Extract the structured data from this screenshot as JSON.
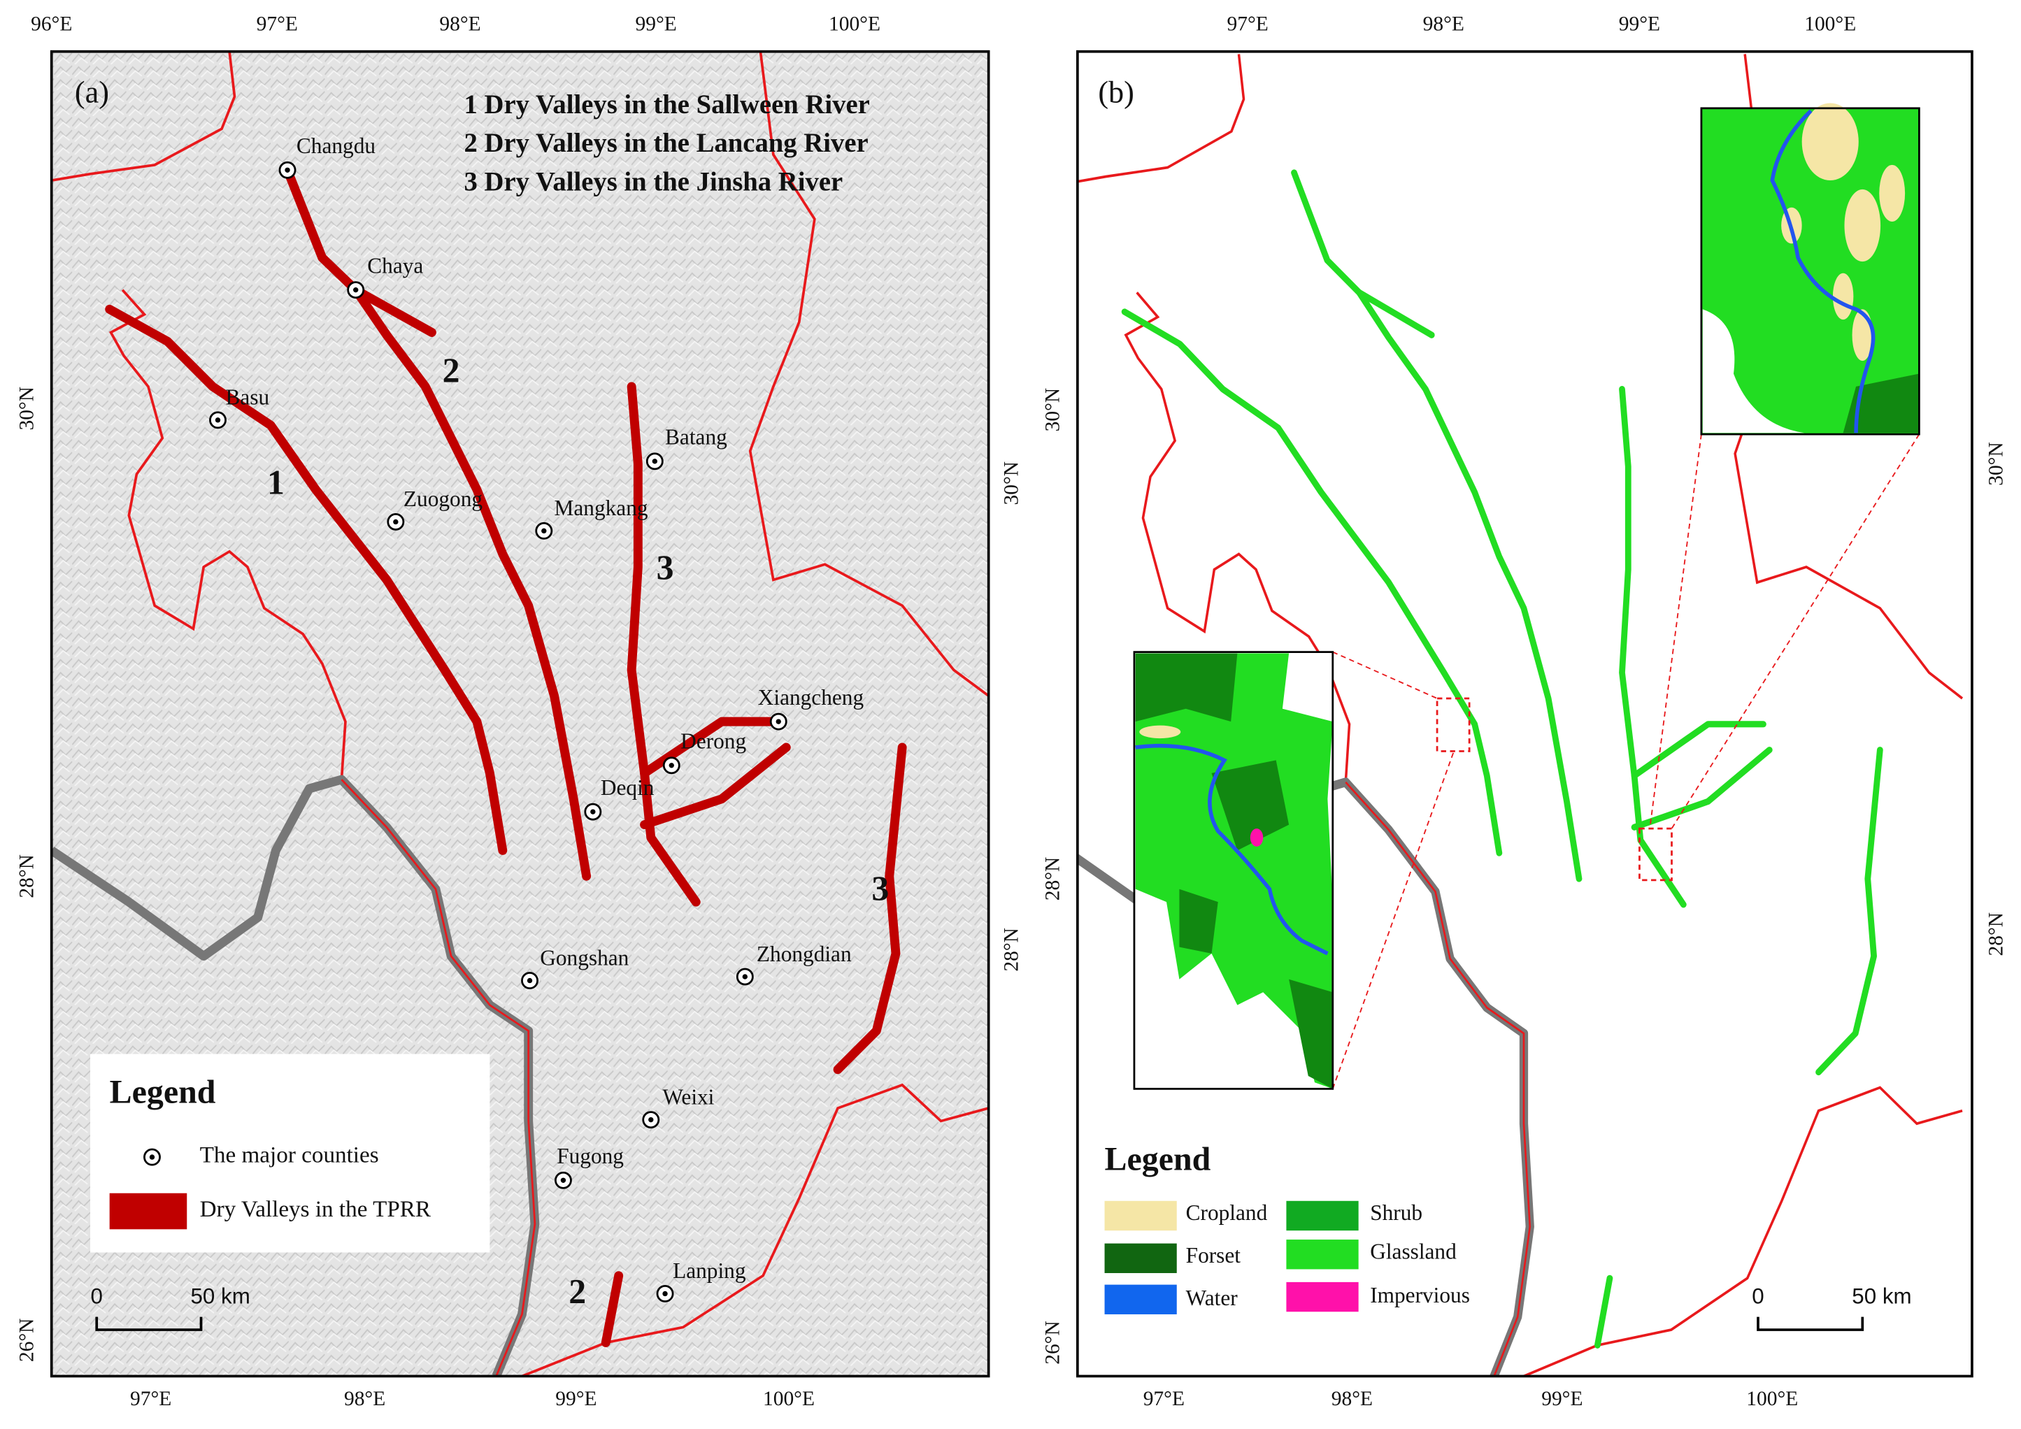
{
  "panel_a": {
    "label": "(a)",
    "notes": [
      "1 Dry Valleys in the Sallween River",
      "2 Dry Valleys in the Lancang River",
      "3 Dry Valleys in the Jinsha River"
    ],
    "top_ticks": [
      "96°E",
      "97°E",
      "98°E",
      "99°E",
      "100°E"
    ],
    "bottom_ticks": [
      "97°E",
      "98°E",
      "99°E",
      "100°E"
    ],
    "left_ticks": [
      "30°N",
      "28°N",
      "26°N"
    ],
    "right_ticks": [
      "30°N",
      "28°N"
    ],
    "counties": [
      "Changdu",
      "Chaya",
      "Basu",
      "Zuogong",
      "Mangkang",
      "Batang",
      "Xiangcheng",
      "Derong",
      "Deqin",
      "Gongshan",
      "Zhongdian",
      "Weixi",
      "Fugong",
      "Lanping"
    ],
    "valley_numbers": [
      "1",
      "2",
      "3",
      "3",
      "2"
    ],
    "legend": {
      "title": "Legend",
      "items": [
        "The major counties",
        "Dry Valleys in the TPRR"
      ]
    },
    "scale": [
      "0",
      "50 km"
    ]
  },
  "panel_b": {
    "label": "(b)",
    "top_ticks": [
      "97°E",
      "98°E",
      "99°E",
      "100°E"
    ],
    "bottom_ticks": [
      "97°E",
      "98°E",
      "99°E",
      "100°E"
    ],
    "left_ticks": [
      "30°N",
      "28°N",
      "26°N"
    ],
    "right_ticks": [
      "30°N",
      "28°N"
    ],
    "legend": {
      "title": "Legend",
      "items": [
        "Cropland",
        "Forset",
        "Water",
        "Shrub",
        "Glassland",
        "Impervious"
      ]
    },
    "scale": [
      "0",
      "50 km"
    ]
  }
}
